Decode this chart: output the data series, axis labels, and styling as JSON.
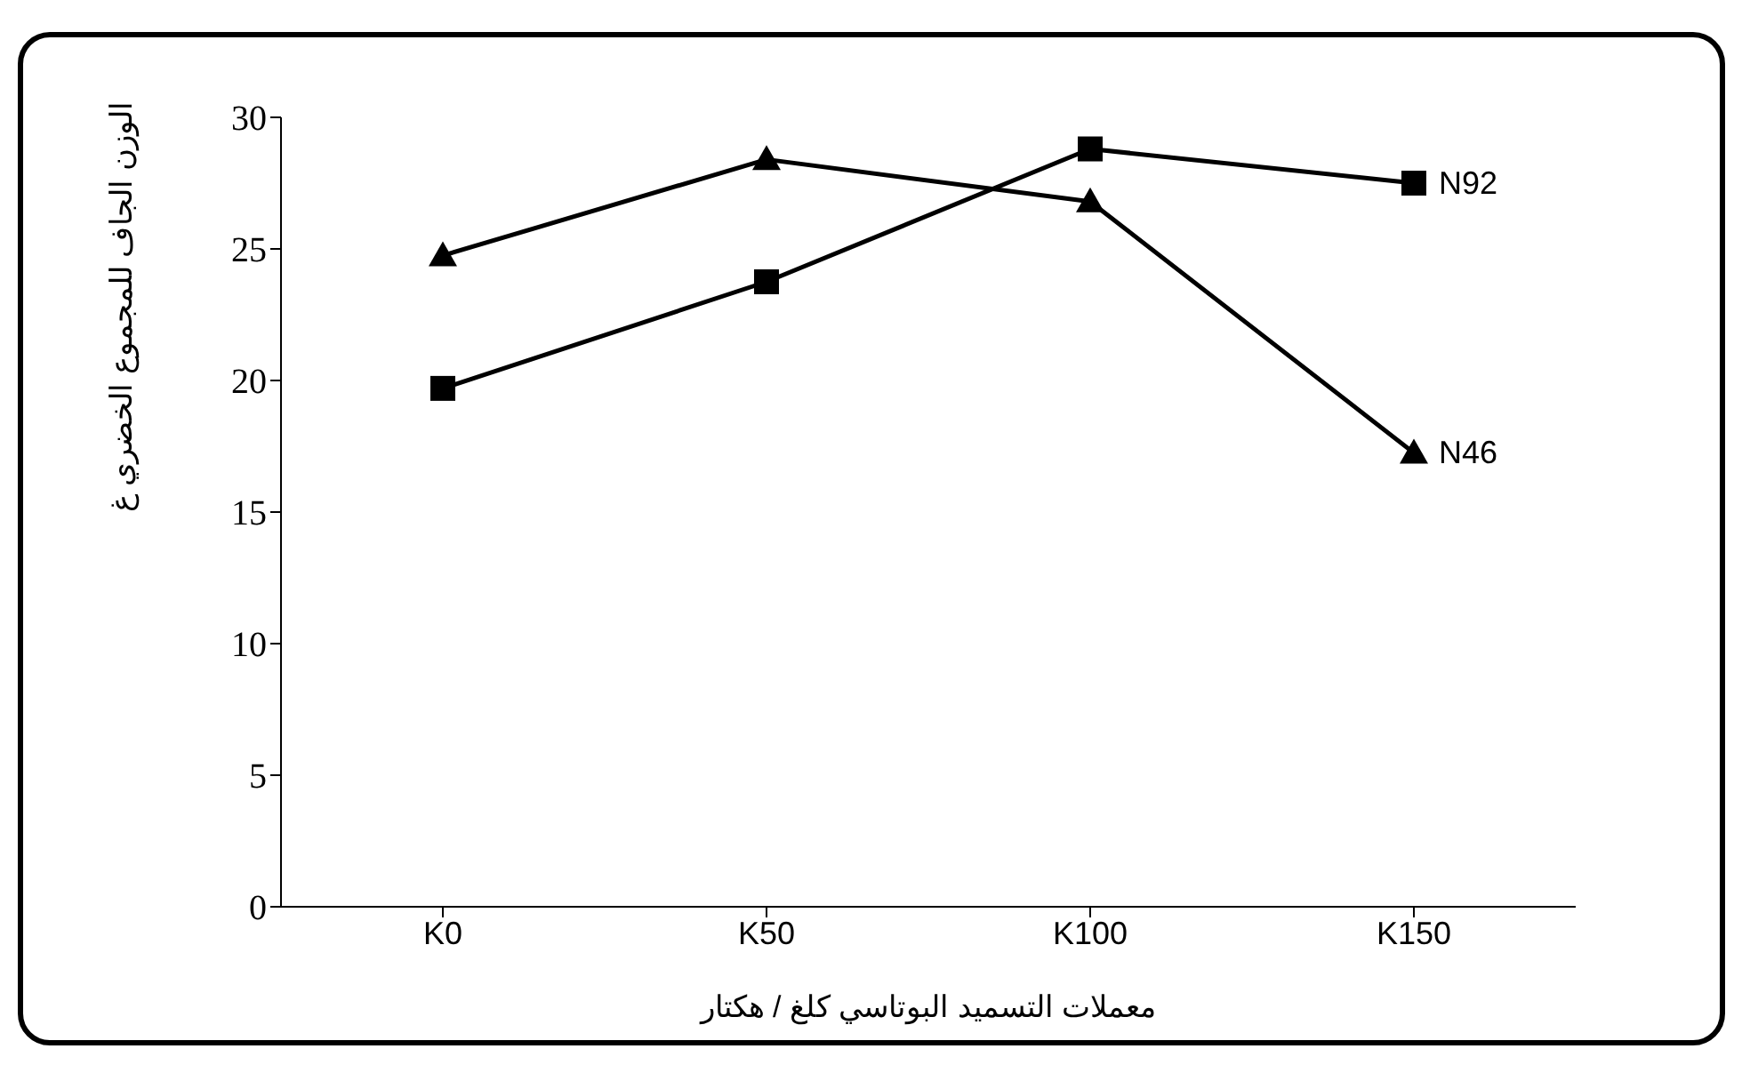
{
  "chart_data": {
    "type": "line",
    "xlabel": "معملات التسميد البوتاسي كلغ / هكتار",
    "ylabel": "الوزن الجاف للمجموع الخضري غ",
    "categories": [
      "K0",
      "K50",
      "K100",
      "K150"
    ],
    "series": [
      {
        "name": "N46",
        "color": "#000000",
        "marker": "triangle",
        "values": [
          24.75,
          28.4,
          26.8,
          17.25
        ]
      },
      {
        "name": "N92",
        "color": "#000000",
        "marker": "square",
        "values": [
          19.7,
          23.75,
          28.8,
          27.5
        ]
      }
    ],
    "ylim": [
      0,
      30
    ],
    "yticks": [
      0,
      5,
      10,
      15,
      20,
      25,
      30
    ],
    "grid": false,
    "legend": false
  }
}
